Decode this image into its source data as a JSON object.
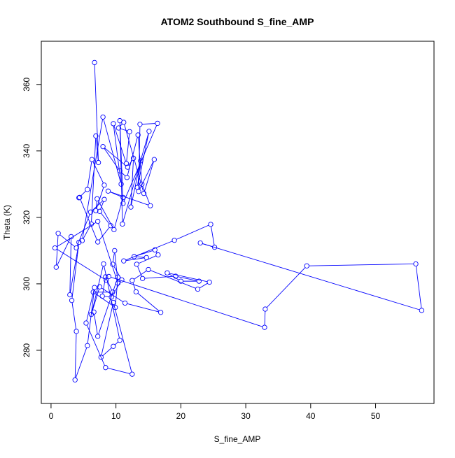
{
  "chart_data": {
    "type": "line",
    "title": "ATOM2 Southbound S_fine_AMP",
    "xlabel": "S_fine_AMP",
    "ylabel": "Theta (K)",
    "xlim": [
      -1.5,
      59
    ],
    "ylim": [
      264,
      373
    ],
    "xticks": [
      0,
      10,
      20,
      30,
      40,
      50
    ],
    "yticks": [
      280,
      300,
      320,
      340,
      360
    ],
    "series_color": "#0000FF",
    "grid": false,
    "legend": "none",
    "points": [
      [
        6.7,
        366.6
      ],
      [
        7.3,
        336.5
      ],
      [
        6.9,
        344.5
      ],
      [
        6.2,
        318.0
      ],
      [
        4.8,
        313.0
      ],
      [
        8.0,
        350.2
      ],
      [
        10.8,
        330.0
      ],
      [
        9.6,
        348.2
      ],
      [
        11.6,
        336.2
      ],
      [
        12.1,
        345.8
      ],
      [
        10.4,
        346.9
      ],
      [
        11.2,
        348.6
      ],
      [
        14.3,
        327.2
      ],
      [
        15.9,
        337.4
      ],
      [
        13.5,
        327.8
      ],
      [
        13.7,
        348.0
      ],
      [
        16.4,
        348.3
      ],
      [
        11.1,
        324.2
      ],
      [
        10.6,
        349.1
      ],
      [
        11.0,
        318.0
      ],
      [
        15.1,
        345.9
      ],
      [
        13.3,
        329.0
      ],
      [
        13.8,
        337.0
      ],
      [
        12.3,
        323.1
      ],
      [
        12.7,
        337.8
      ],
      [
        11.8,
        335.1
      ],
      [
        8.0,
        341.3
      ],
      [
        10.6,
        334.0
      ],
      [
        11.7,
        332.0
      ],
      [
        13.4,
        344.8
      ],
      [
        14.0,
        330.0
      ],
      [
        15.3,
        323.5
      ],
      [
        8.8,
        327.9
      ],
      [
        11.1,
        326.0
      ],
      [
        9.7,
        316.3
      ],
      [
        7.1,
        325.6
      ],
      [
        6.9,
        322.0
      ],
      [
        8.2,
        329.7
      ],
      [
        6.3,
        337.4
      ],
      [
        5.6,
        328.4
      ],
      [
        4.3,
        325.9
      ],
      [
        4.4,
        326.0
      ],
      [
        7.2,
        312.6
      ],
      [
        9.2,
        317.5
      ],
      [
        7.5,
        321.8
      ],
      [
        8.2,
        325.4
      ],
      [
        6.1,
        321.6
      ],
      [
        3.9,
        310.8
      ],
      [
        1.1,
        315.2
      ],
      [
        0.8,
        305.0
      ],
      [
        3.1,
        314.2
      ],
      [
        2.9,
        296.7
      ],
      [
        4.3,
        312.5
      ],
      [
        3.2,
        295.0
      ],
      [
        3.9,
        285.7
      ],
      [
        3.7,
        271.1
      ],
      [
        5.6,
        281.4
      ],
      [
        6.7,
        298.9
      ],
      [
        5.4,
        288.2
      ],
      [
        8.4,
        274.8
      ],
      [
        12.5,
        272.8
      ],
      [
        9.6,
        294.4
      ],
      [
        7.7,
        277.9
      ],
      [
        9.6,
        281.2
      ],
      [
        10.6,
        283.0
      ],
      [
        8.1,
        306.0
      ],
      [
        6.2,
        290.8
      ],
      [
        7.5,
        299.1
      ],
      [
        11.4,
        294.2
      ],
      [
        16.9,
        291.4
      ],
      [
        13.1,
        297.6
      ],
      [
        12.5,
        301.0
      ],
      [
        15.0,
        304.3
      ],
      [
        22.6,
        298.4
      ],
      [
        24.4,
        300.5
      ],
      [
        17.9,
        303.3
      ],
      [
        20.0,
        300.8
      ],
      [
        22.8,
        300.8
      ],
      [
        19.2,
        302.3
      ],
      [
        14.1,
        301.6
      ],
      [
        13.2,
        305.9
      ],
      [
        16.5,
        308.7
      ],
      [
        16.0,
        310.2
      ],
      [
        12.8,
        308.2
      ],
      [
        14.7,
        307.9
      ],
      [
        11.2,
        306.9
      ],
      [
        19.0,
        313.1
      ],
      [
        24.6,
        317.9
      ],
      [
        25.2,
        311.0
      ],
      [
        23.0,
        312.3
      ],
      [
        57.1,
        292.0
      ],
      [
        56.2,
        306.0
      ],
      [
        39.4,
        305.4
      ],
      [
        33.0,
        292.4
      ],
      [
        32.9,
        286.9
      ],
      [
        8.9,
        302.2
      ],
      [
        8.5,
        301.1
      ],
      [
        0.6,
        310.8
      ],
      [
        7.2,
        318.8
      ],
      [
        10.3,
        300.2
      ],
      [
        9.8,
        310.0
      ],
      [
        9.5,
        305.9
      ],
      [
        10.9,
        301.2
      ],
      [
        9.3,
        296.0
      ],
      [
        7.9,
        296.3
      ],
      [
        8.4,
        302.1
      ],
      [
        9.5,
        297.5
      ],
      [
        6.5,
        297.5
      ],
      [
        9.9,
        292.9
      ],
      [
        10.3,
        302.0
      ],
      [
        7.2,
        284.2
      ],
      [
        6.6,
        291.5
      ]
    ]
  }
}
